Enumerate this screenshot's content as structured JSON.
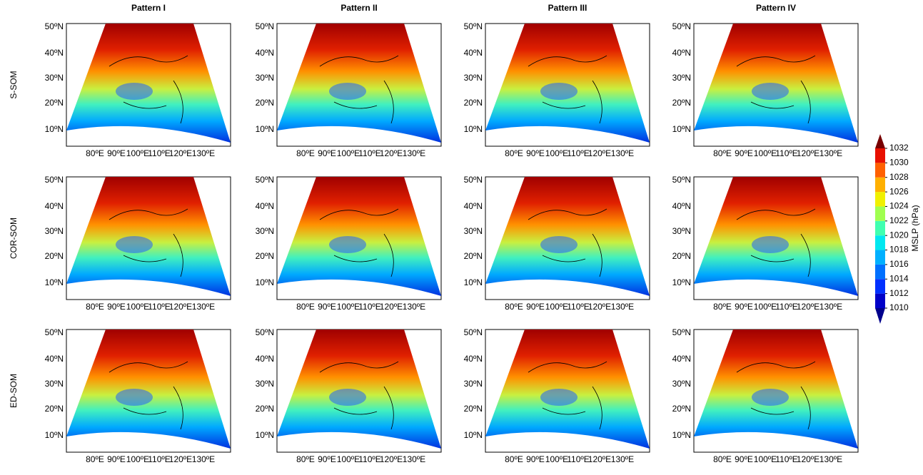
{
  "columns": [
    "Pattern I",
    "Pattern II",
    "Pattern III",
    "Pattern IV"
  ],
  "rows": [
    "S-SOM",
    "COR-SOM",
    "ED-SOM"
  ],
  "lat_ticks": [
    "50ºN",
    "40ºN",
    "30ºN",
    "20ºN",
    "10ºN"
  ],
  "lon_ticks": [
    "80ºE",
    "90ºE",
    "100ºE",
    "110ºE",
    "120ºE",
    "130ºE"
  ],
  "colorbar": {
    "label": "MSLP (hPa)",
    "range": [
      1010,
      1032
    ],
    "ticks": [
      1010,
      1012,
      1014,
      1016,
      1018,
      1020,
      1022,
      1024,
      1026,
      1028,
      1030,
      1032
    ],
    "colors": [
      "#0000c8",
      "#0030ff",
      "#0070ff",
      "#00b0ff",
      "#00e8f0",
      "#40ffb0",
      "#a0ff50",
      "#f0f000",
      "#ffb000",
      "#ff6000",
      "#e81000",
      "#900000"
    ],
    "under_color": "#00008c",
    "over_color": "#780000"
  }
}
